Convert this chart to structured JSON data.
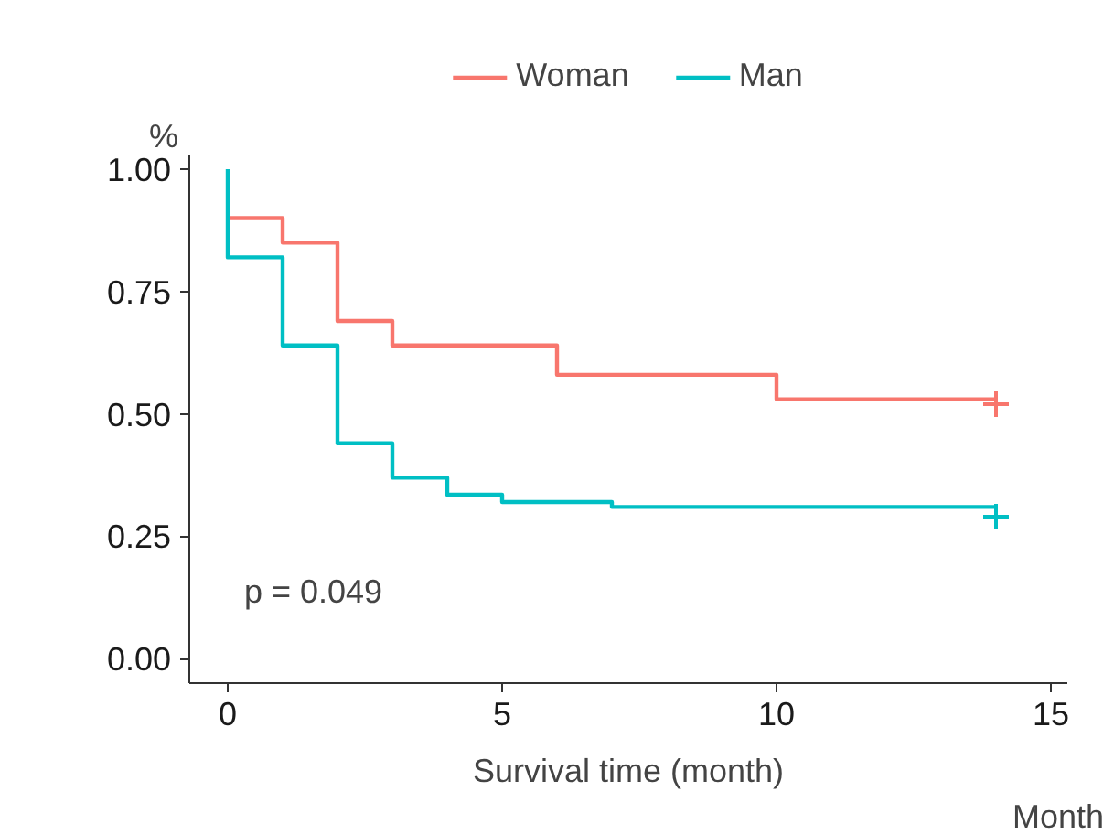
{
  "chart_data": {
    "type": "step",
    "xlabel": "Survival time (month)",
    "ylabel": "%",
    "annotations": [
      "p = 0.049",
      "Month"
    ],
    "series": [
      {
        "name": "Woman",
        "color": "#f8766d",
        "x": [
          0,
          1,
          2,
          3,
          6,
          10,
          14
        ],
        "values": [
          0.9,
          0.85,
          0.69,
          0.64,
          0.58,
          0.53,
          0.53
        ]
      },
      {
        "name": "Man",
        "color": "#00bfc4",
        "x": [
          0,
          0,
          1,
          2,
          3,
          4,
          5,
          7,
          14
        ],
        "values": [
          1.0,
          0.82,
          0.64,
          0.44,
          0.37,
          0.335,
          0.32,
          0.31,
          0.31
        ]
      },
      {
        "type": "scatter",
        "marker": "cross",
        "color": "#f8766d",
        "x": [
          14
        ],
        "values": [
          0.52
        ]
      },
      {
        "type": "scatter",
        "marker": "cross",
        "color": "#00bfc4",
        "x": [
          14
        ],
        "values": [
          0.29
        ]
      }
    ],
    "xlim": [
      -0.7,
      15.3
    ],
    "ylim": [
      -0.05,
      1.03
    ],
    "xticks": [
      0,
      5,
      10,
      15
    ],
    "yticks": [
      {
        "value": 0,
        "label": "0.00"
      },
      {
        "value": 0.25,
        "label": "0.25"
      },
      {
        "value": 0.5,
        "label": "0.50"
      },
      {
        "value": 0.75,
        "label": "0.75"
      },
      {
        "value": 1,
        "label": "1.00"
      }
    ],
    "legend": "top",
    "grid": false
  }
}
